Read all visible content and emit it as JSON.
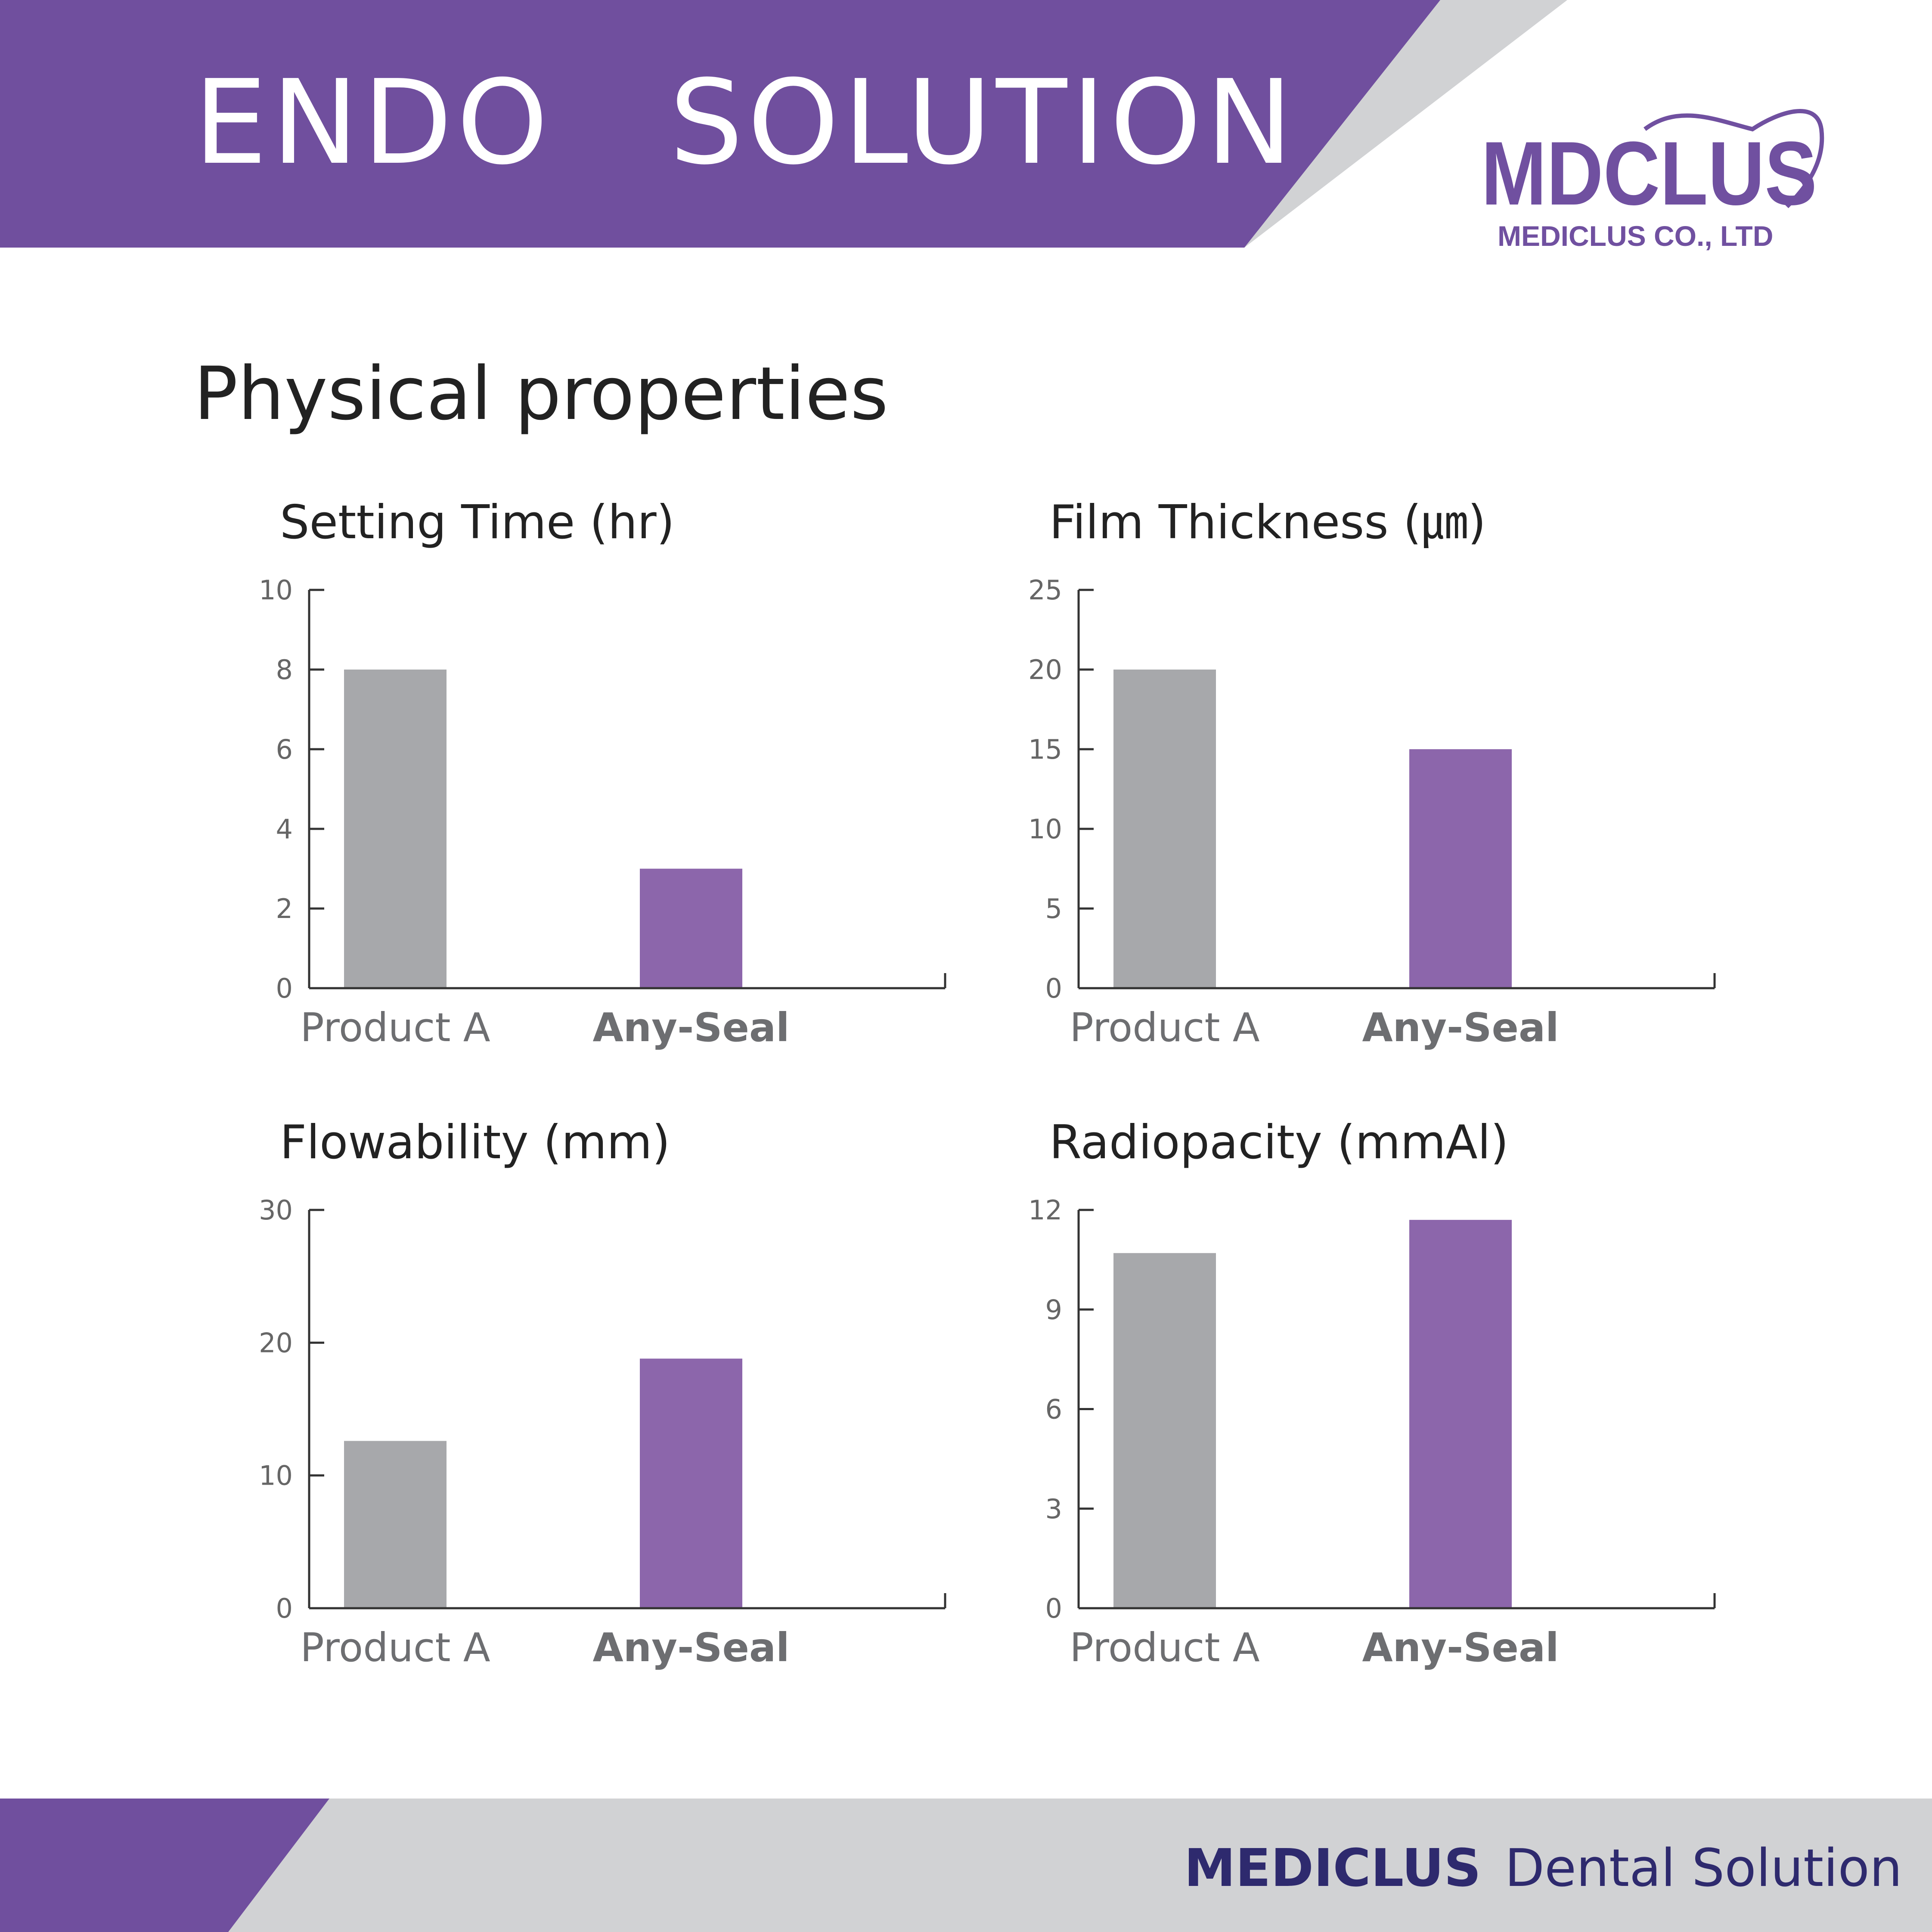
{
  "header": {
    "title": "ENDO  SOLUTION"
  },
  "logo": {
    "mark": "MDCLUS",
    "company": "MEDICLUS CO., LTD"
  },
  "section_title": "Physical properties",
  "colors": {
    "purple": "#704f9e",
    "bar_gray": "#a7a8ab",
    "bar_purple": "#8c66ab",
    "light_gray": "#d1d2d4",
    "axis": "#333333",
    "tick_text": "#666666",
    "label_gray": "#6d6e71",
    "navy": "#2e2a6e"
  },
  "chart_data": [
    {
      "type": "bar",
      "title": "Setting Time (hr)",
      "categories": [
        "Product A",
        "Any-Seal"
      ],
      "values": [
        8,
        3
      ],
      "yticks": [
        0,
        2,
        4,
        6,
        8,
        10
      ],
      "ylim": [
        0,
        10
      ],
      "xlabel": "",
      "ylabel": ""
    },
    {
      "type": "bar",
      "title": "Film Thickness (㎛)",
      "categories": [
        "Product A",
        "Any-Seal"
      ],
      "values": [
        20,
        15
      ],
      "yticks": [
        0,
        5,
        10,
        15,
        20,
        25
      ],
      "ylim": [
        0,
        25
      ],
      "xlabel": "",
      "ylabel": ""
    },
    {
      "type": "bar",
      "title": "Flowability (mm)",
      "categories": [
        "Product A",
        "Any-Seal"
      ],
      "values": [
        12.6,
        18.8
      ],
      "yticks": [
        0,
        10,
        20,
        30
      ],
      "ylim": [
        0,
        30
      ],
      "xlabel": "",
      "ylabel": ""
    },
    {
      "type": "bar",
      "title": "Radiopacity (mmAl)",
      "categories": [
        "Product A",
        "Any-Seal"
      ],
      "values": [
        10.7,
        11.7
      ],
      "yticks": [
        0,
        3,
        6,
        9,
        12
      ],
      "ylim": [
        0,
        12
      ],
      "xlabel": "",
      "ylabel": ""
    }
  ],
  "footer": {
    "brand": "MEDICLUS",
    "tagline": "Dental Solution"
  }
}
